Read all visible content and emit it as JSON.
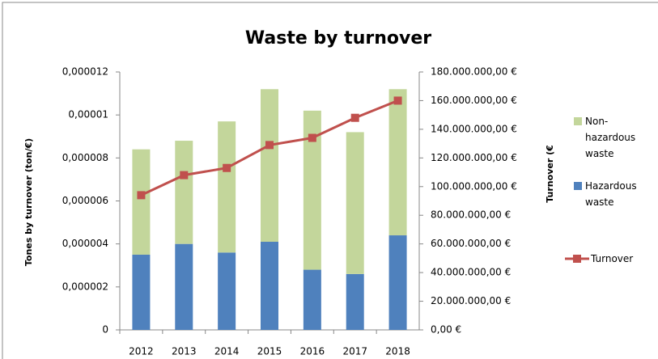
{
  "chart_data": {
    "type": "bar",
    "stacked": true,
    "title": "Waste by turnover",
    "y_label": "Tones by turnover (ton/€)",
    "y2_label": "Turnover (€",
    "categories": [
      "2012",
      "2013",
      "2014",
      "2015",
      "2016",
      "2017",
      "2018"
    ],
    "series": [
      {
        "name": "Hazardous waste",
        "color": "#4f81bd",
        "values": [
          3.5e-06,
          4e-06,
          3.6e-06,
          4.1e-06,
          2.8e-06,
          2.6e-06,
          4.4e-06
        ]
      },
      {
        "name": "Non-hazardous waste",
        "color": "#c3d69b",
        "values": [
          4.9e-06,
          4.8e-06,
          6.1e-06,
          7.1e-06,
          7.4e-06,
          6.6e-06,
          6.8e-06
        ]
      },
      {
        "name": "Turnover",
        "color": "#c0504d",
        "type": "line",
        "axis": "y2",
        "values": [
          94000000,
          108000000,
          113000000,
          129000000,
          134000000,
          148000000,
          160000000
        ]
      }
    ],
    "legend_order": [
      1,
      0,
      2
    ],
    "ylim": [
      0,
      1.2e-05
    ],
    "yticks": [
      0,
      {
        "value": 2e-06,
        "label": "0,000002"
      },
      {
        "value": 4e-06,
        "label": "0,000004"
      },
      {
        "value": 6e-06,
        "label": "0,000006"
      },
      {
        "value": 8e-06,
        "label": "0,000008"
      },
      {
        "value": 1e-05,
        "label": "0,00001"
      },
      {
        "value": 1.2e-05,
        "label": "0,000012"
      }
    ],
    "y2lim": [
      0,
      180000000
    ],
    "y2ticks": [
      {
        "value": 0,
        "label": "0,00 €"
      },
      {
        "value": 20000000,
        "label": "20.000.000,00 €"
      },
      {
        "value": 40000000,
        "label": "40.000.000,00 €"
      },
      {
        "value": 60000000,
        "label": "60.000.000,00 €"
      },
      {
        "value": 80000000,
        "label": "80.000.000,00 €"
      },
      {
        "value": 100000000,
        "label": "100.000.000,00 €"
      },
      {
        "value": 120000000,
        "label": "120.000.000,00 €"
      },
      {
        "value": 140000000,
        "label": "140.000.000,00 €"
      },
      {
        "value": 160000000,
        "label": "160.000.000,00 €"
      },
      {
        "value": 180000000,
        "label": "180.000.000,00 €"
      }
    ],
    "legend": "right"
  }
}
